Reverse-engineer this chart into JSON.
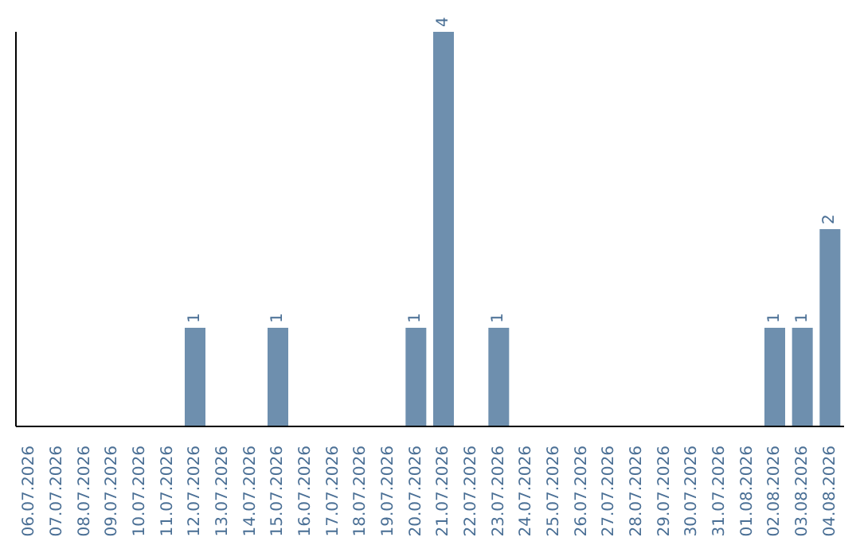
{
  "chart_data": {
    "type": "bar",
    "categories": [
      "06.07.2026",
      "07.07.2026",
      "08.07.2026",
      "09.07.2026",
      "10.07.2026",
      "11.07.2026",
      "12.07.2026",
      "13.07.2026",
      "14.07.2026",
      "15.07.2026",
      "16.07.2026",
      "17.07.2026",
      "18.07.2026",
      "19.07.2026",
      "20.07.2026",
      "21.07.2026",
      "22.07.2026",
      "23.07.2026",
      "24.07.2026",
      "25.07.2026",
      "26.07.2026",
      "27.07.2026",
      "28.07.2026",
      "29.07.2026",
      "30.07.2026",
      "31.07.2026",
      "01.08.2026",
      "02.08.2026",
      "03.08.2026",
      "04.08.2026"
    ],
    "values": [
      0,
      0,
      0,
      0,
      0,
      0,
      1,
      0,
      0,
      1,
      0,
      0,
      0,
      0,
      1,
      4,
      0,
      1,
      0,
      0,
      0,
      0,
      0,
      0,
      0,
      0,
      0,
      1,
      1,
      2
    ],
    "value_labels": [
      null,
      null,
      null,
      null,
      null,
      null,
      "1",
      null,
      null,
      "1",
      null,
      null,
      null,
      null,
      "1",
      "4",
      null,
      "1",
      null,
      null,
      null,
      null,
      null,
      null,
      null,
      null,
      null,
      "1",
      "1",
      "2"
    ],
    "color": "#6e8fae",
    "ylim": [
      0,
      4
    ],
    "grid": false,
    "legend": false
  }
}
